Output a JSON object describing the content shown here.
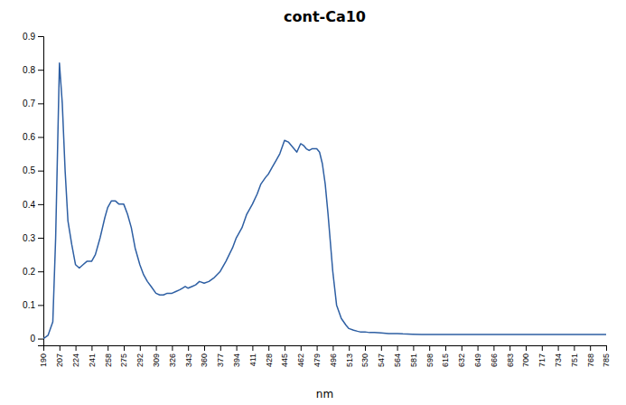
{
  "chart_data": {
    "type": "line",
    "title": "cont-Ca10",
    "xlabel": "nm",
    "color": "#2e5fa3",
    "xlim": [
      190,
      785
    ],
    "ylim": [
      -0.02,
      0.9
    ],
    "xticks": [
      190,
      207,
      224,
      241,
      258,
      275,
      292,
      309,
      326,
      343,
      360,
      377,
      394,
      411,
      428,
      445,
      462,
      479,
      496,
      513,
      530,
      547,
      564,
      581,
      598,
      615,
      632,
      649,
      666,
      683,
      700,
      717,
      734,
      751,
      768,
      785
    ],
    "yticks": [
      0,
      0.1,
      0.2,
      0.3,
      0.4,
      0.5,
      0.6,
      0.7,
      0.8,
      0.9
    ],
    "x": [
      190,
      195,
      200,
      203,
      207,
      210,
      213,
      216,
      220,
      224,
      228,
      232,
      236,
      241,
      245,
      250,
      255,
      258,
      262,
      266,
      270,
      275,
      279,
      283,
      287,
      292,
      296,
      300,
      304,
      309,
      313,
      317,
      321,
      326,
      330,
      334,
      337,
      340,
      343,
      347,
      351,
      355,
      360,
      365,
      370,
      377,
      383,
      390,
      394,
      400,
      405,
      411,
      416,
      420,
      425,
      428,
      432,
      436,
      440,
      445,
      449,
      452,
      455,
      458,
      462,
      465,
      468,
      471,
      474,
      477,
      479,
      482,
      485,
      488,
      491,
      496,
      500,
      505,
      510,
      513,
      518,
      522,
      525,
      530,
      535,
      540,
      547,
      555,
      564,
      570,
      580,
      590,
      600,
      615,
      632,
      649,
      666,
      683,
      700,
      734,
      768,
      785
    ],
    "values": [
      0.0,
      0.01,
      0.05,
      0.3,
      0.82,
      0.7,
      0.5,
      0.35,
      0.28,
      0.22,
      0.21,
      0.22,
      0.23,
      0.23,
      0.25,
      0.3,
      0.36,
      0.39,
      0.41,
      0.41,
      0.4,
      0.4,
      0.37,
      0.33,
      0.27,
      0.22,
      0.19,
      0.17,
      0.155,
      0.135,
      0.13,
      0.13,
      0.135,
      0.135,
      0.14,
      0.145,
      0.15,
      0.155,
      0.15,
      0.155,
      0.16,
      0.17,
      0.165,
      0.17,
      0.18,
      0.2,
      0.23,
      0.27,
      0.3,
      0.33,
      0.37,
      0.4,
      0.43,
      0.46,
      0.48,
      0.49,
      0.51,
      0.53,
      0.55,
      0.59,
      0.585,
      0.575,
      0.565,
      0.555,
      0.58,
      0.575,
      0.565,
      0.56,
      0.565,
      0.565,
      0.565,
      0.555,
      0.52,
      0.46,
      0.37,
      0.2,
      0.1,
      0.06,
      0.04,
      0.03,
      0.025,
      0.022,
      0.02,
      0.02,
      0.018,
      0.018,
      0.017,
      0.015,
      0.015,
      0.014,
      0.013,
      0.012,
      0.012,
      0.012,
      0.012,
      0.012,
      0.012,
      0.012,
      0.012,
      0.012,
      0.012,
      0.012
    ]
  }
}
